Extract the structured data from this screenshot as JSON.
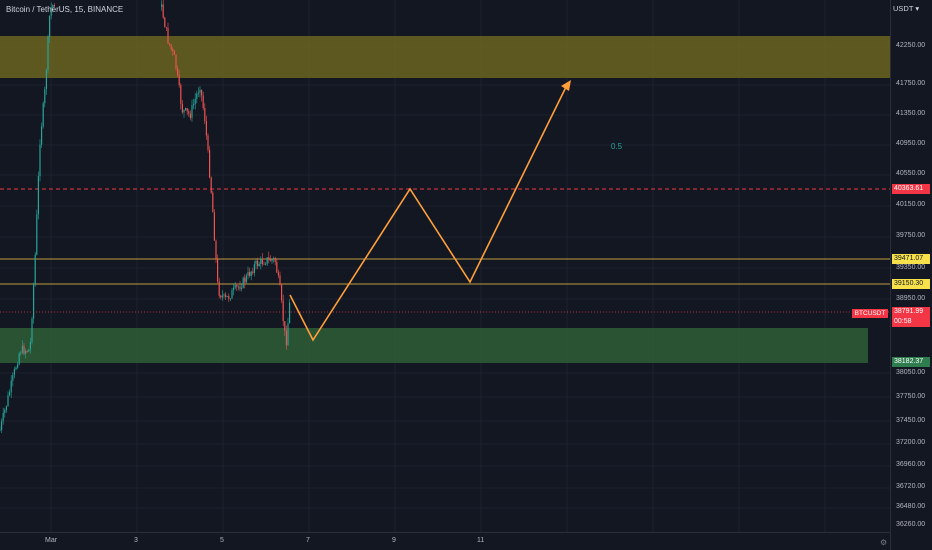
{
  "header": {
    "symbol_title": "Bitcoin / TetherUS, 15, BINANCE",
    "currency_selector": "USDT ▾"
  },
  "price_axis": {
    "ticks": [
      "42250.00",
      "41750.00",
      "41350.00",
      "40950.00",
      "40550.00",
      "40150.00",
      "39750.00",
      "39350.00",
      "38950.00",
      "38050.00",
      "37750.00",
      "37450.00",
      "37200.00",
      "36960.00",
      "36720.00",
      "36480.00",
      "36260.00"
    ],
    "badges": {
      "resistance": "40363.61",
      "level_upper": "39471.07",
      "level_lower": "39150.30",
      "last_price": "38791.99",
      "countdown": "00:58",
      "support": "38182.37"
    },
    "symbol_badge": "BTCUSDT"
  },
  "time_axis": {
    "labels": [
      "Mar",
      "3",
      "5",
      "7",
      "9",
      "11"
    ]
  },
  "annotations": {
    "fib_label": "0.5"
  },
  "colors": {
    "background": "#131722",
    "up_candle": "#26a69a",
    "down_candle": "#ef5350",
    "resistance_zone": "#6b6420",
    "support_zone": "#2e5a35",
    "projection": "#ff9f3a",
    "level_line": "#f7c948",
    "dashed_level": "#f23645"
  },
  "icons": {
    "settings": "gear-icon"
  }
}
